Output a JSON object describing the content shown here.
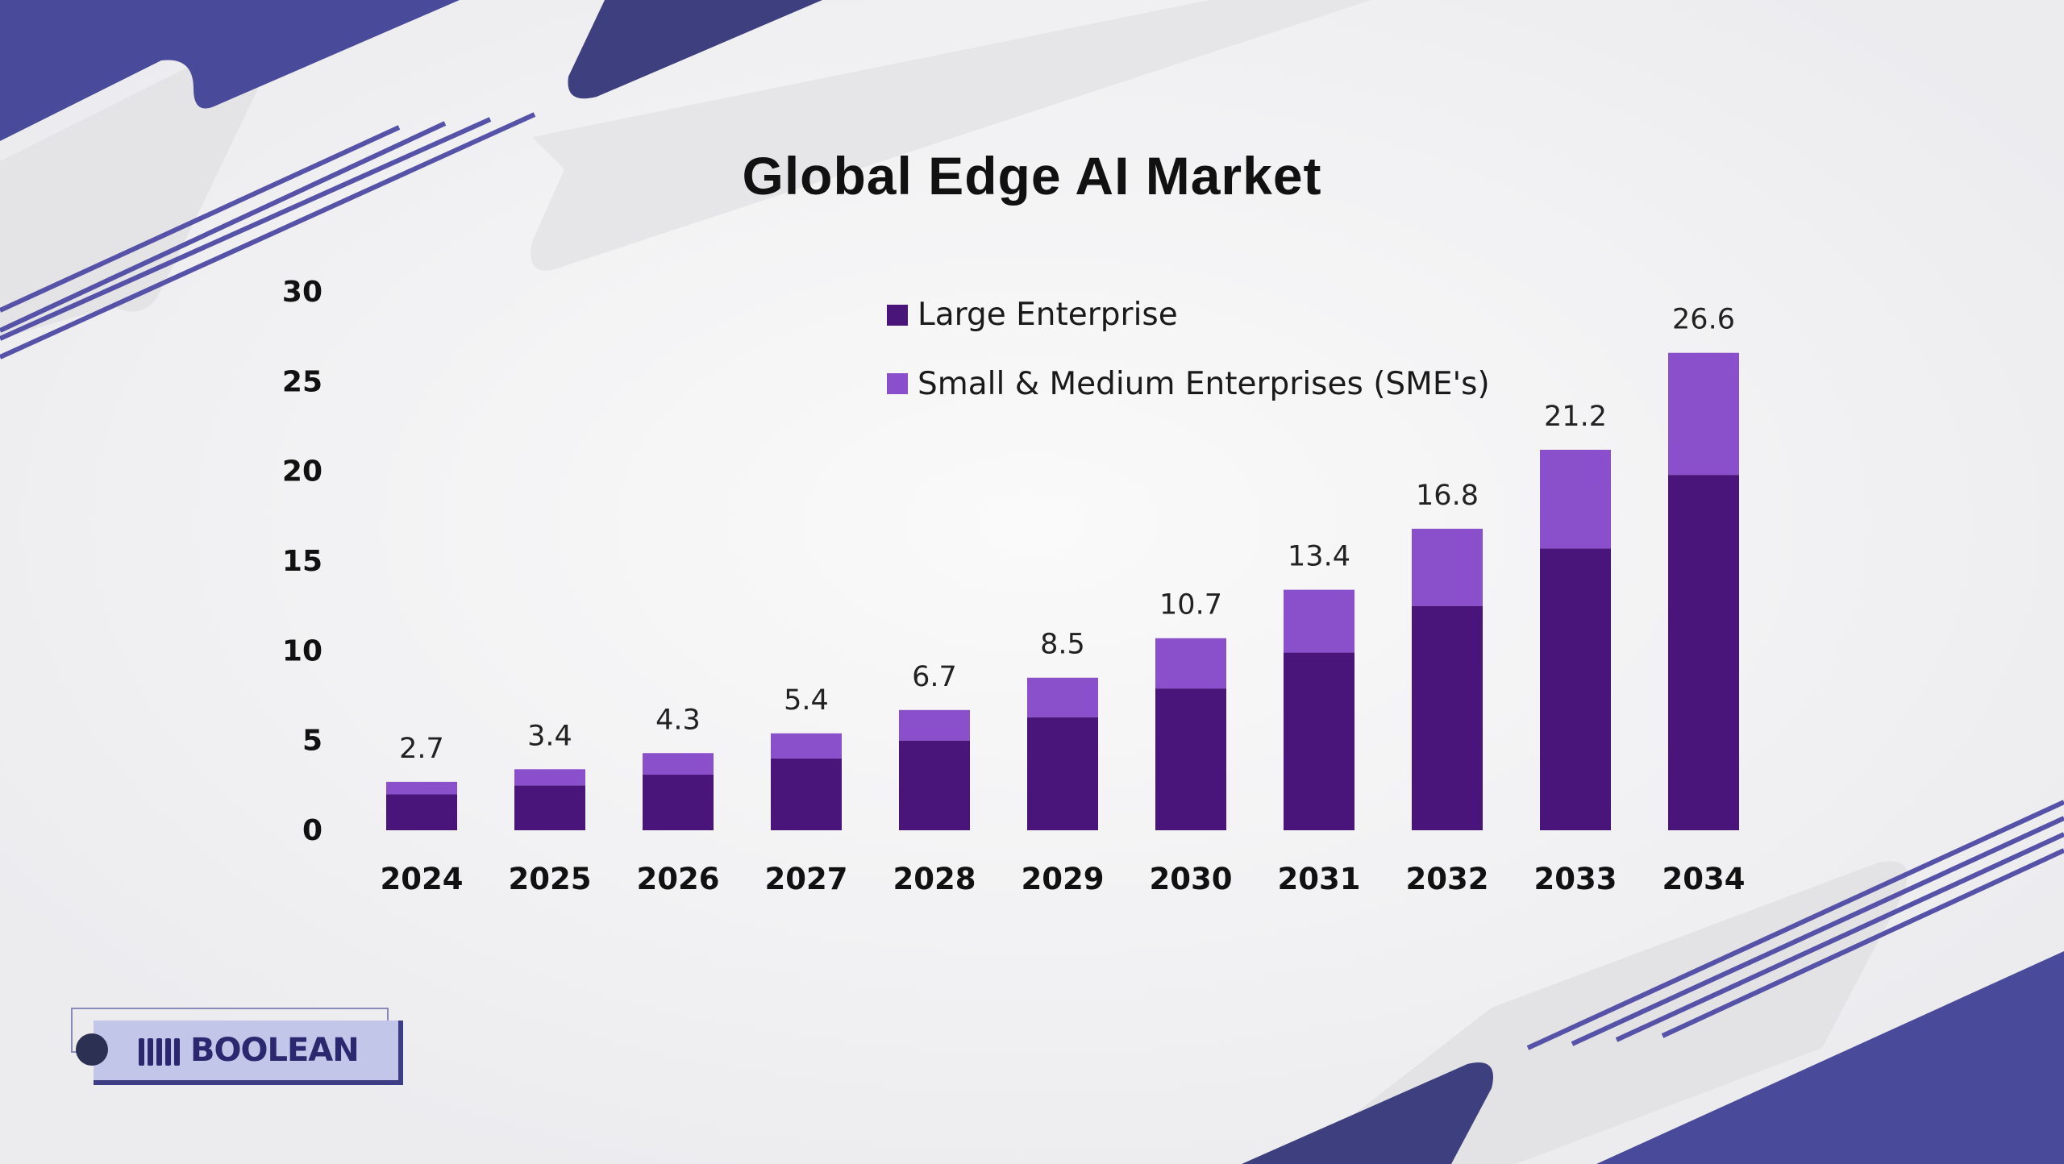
{
  "title": "Global Edge AI Market",
  "colors": {
    "large_enterprise": "#4a157a",
    "sme": "#8a4fcb",
    "accent": "#4b4a9e",
    "background": "#f1f1f3"
  },
  "brand": {
    "name": "BOOLEAN"
  },
  "chart_data": {
    "type": "bar",
    "stacked": true,
    "title": "Global Edge AI Market",
    "xlabel": "",
    "ylabel": "",
    "categories": [
      "2024",
      "2025",
      "2026",
      "2027",
      "2028",
      "2029",
      "2030",
      "2031",
      "2032",
      "2033",
      "2034"
    ],
    "series": [
      {
        "name": "Large Enterprise",
        "color": "#4a157a",
        "values": [
          2.0,
          2.5,
          3.1,
          4.0,
          5.0,
          6.3,
          7.9,
          9.9,
          12.5,
          15.7,
          19.8
        ]
      },
      {
        "name": "Small & Medium Enterprises (SME's)",
        "color": "#8a4fcb",
        "values": [
          0.7,
          0.9,
          1.2,
          1.4,
          1.7,
          2.2,
          2.8,
          3.5,
          4.3,
          5.5,
          6.8
        ]
      }
    ],
    "totals": [
      2.7,
      3.4,
      4.3,
      5.4,
      6.7,
      8.5,
      10.7,
      13.4,
      16.8,
      21.2,
      26.6
    ],
    "total_labels": [
      "2.7",
      "3.4",
      "4.3",
      "5.4",
      "6.7",
      "8.5",
      "10.7",
      "13.4",
      "16.8",
      "21.2",
      "26.6"
    ],
    "ylim": [
      0,
      30
    ],
    "yticks": [
      "0",
      "5",
      "10",
      "15",
      "20",
      "25",
      "30"
    ],
    "grid": false,
    "legend": "top-center"
  }
}
